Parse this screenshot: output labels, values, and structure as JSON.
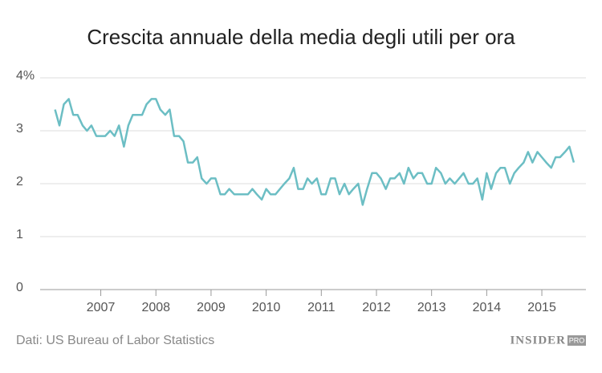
{
  "chart_data": {
    "type": "line",
    "title": "Crescita annuale della media degli utili per ora",
    "source": "Dati: US Bureau of Labor Statistics",
    "logo": "INSIDER",
    "logo_badge": "PRO",
    "x": [
      2006.17,
      2006.25,
      2006.33,
      2006.42,
      2006.5,
      2006.58,
      2006.67,
      2006.75,
      2006.83,
      2006.92,
      2007,
      2007.08,
      2007.17,
      2007.25,
      2007.33,
      2007.42,
      2007.5,
      2007.58,
      2007.67,
      2007.75,
      2007.83,
      2007.92,
      2008,
      2008.08,
      2008.17,
      2008.25,
      2008.33,
      2008.42,
      2008.5,
      2008.58,
      2008.67,
      2008.75,
      2008.83,
      2008.92,
      2009,
      2009.08,
      2009.17,
      2009.25,
      2009.33,
      2009.42,
      2009.5,
      2009.58,
      2009.67,
      2009.75,
      2009.83,
      2009.92,
      2010,
      2010.08,
      2010.17,
      2010.25,
      2010.33,
      2010.42,
      2010.5,
      2010.58,
      2010.67,
      2010.75,
      2010.83,
      2010.92,
      2011,
      2011.08,
      2011.17,
      2011.25,
      2011.33,
      2011.42,
      2011.5,
      2011.58,
      2011.67,
      2011.75,
      2011.83,
      2011.92,
      2012,
      2012.08,
      2012.17,
      2012.25,
      2012.33,
      2012.42,
      2012.5,
      2012.58,
      2012.67,
      2012.75,
      2012.83,
      2012.92,
      2013,
      2013.08,
      2013.17,
      2013.25,
      2013.33,
      2013.42,
      2013.5,
      2013.58,
      2013.67,
      2013.75,
      2013.83,
      2013.92,
      2014,
      2014.08,
      2014.17,
      2014.25,
      2014.33,
      2014.42,
      2014.5,
      2014.58,
      2014.67,
      2014.75,
      2014.83,
      2014.92,
      2015,
      2015.08,
      2015.17,
      2015.25,
      2015.33,
      2015.42,
      2015.5,
      2015.58
    ],
    "series": [
      {
        "name": "Crescita annuale",
        "color": "#6cbec4",
        "values": [
          3.4,
          3.1,
          3.5,
          3.6,
          3.3,
          3.3,
          3.1,
          3.0,
          3.1,
          2.9,
          2.9,
          2.9,
          3.0,
          2.9,
          3.1,
          2.7,
          3.1,
          3.3,
          3.3,
          3.3,
          3.5,
          3.6,
          3.6,
          3.4,
          3.3,
          3.4,
          2.9,
          2.9,
          2.8,
          2.4,
          2.4,
          2.5,
          2.1,
          2.0,
          2.1,
          2.1,
          1.8,
          1.8,
          1.9,
          1.8,
          1.8,
          1.8,
          1.8,
          1.9,
          1.8,
          1.7,
          1.9,
          1.8,
          1.8,
          1.9,
          2.0,
          2.1,
          2.3,
          1.9,
          1.9,
          2.1,
          2.0,
          2.1,
          1.8,
          1.8,
          2.1,
          2.1,
          1.8,
          2.0,
          1.8,
          1.9,
          2.0,
          1.6,
          1.9,
          2.2,
          2.2,
          2.1,
          1.9,
          2.1,
          2.1,
          2.2,
          2.0,
          2.3,
          2.1,
          2.2,
          2.2,
          2.0,
          2.0,
          2.3,
          2.2,
          2.0,
          2.1,
          2.0,
          2.1,
          2.2,
          2.0,
          2.0,
          2.1,
          1.7,
          2.2,
          1.9,
          2.2,
          2.3,
          2.3,
          2.0,
          2.2,
          2.3,
          2.4,
          2.6,
          2.4,
          2.6,
          2.5,
          2.4,
          2.3,
          2.5,
          2.5,
          2.6,
          2.7,
          2.4
        ]
      }
    ],
    "xlim": [
      2005.9,
      2015.8
    ],
    "xticks": [
      2007,
      2008,
      2009,
      2010,
      2011,
      2012,
      2013,
      2014,
      2015
    ],
    "ylim": [
      0,
      4
    ],
    "yticks": [
      0,
      1,
      2,
      3,
      {
        "value": 4,
        "label": "4%"
      }
    ],
    "grid": true
  }
}
